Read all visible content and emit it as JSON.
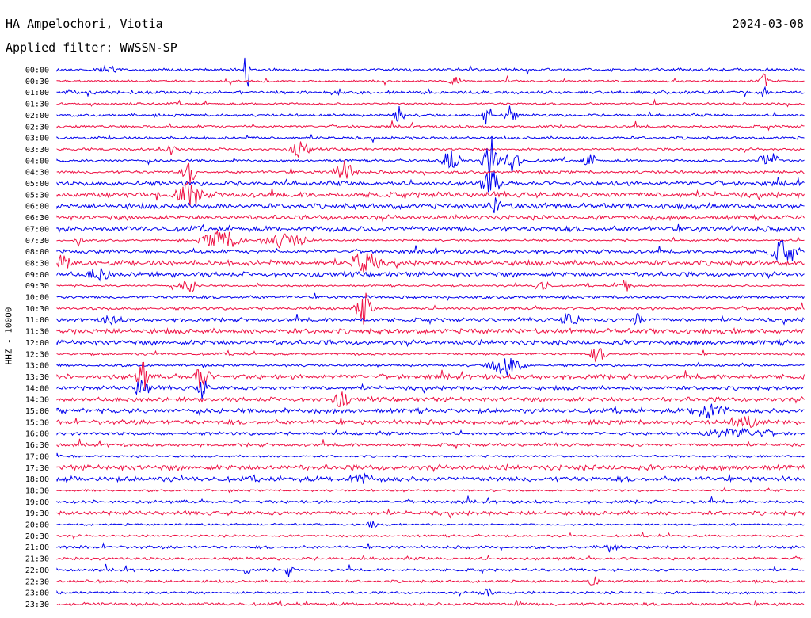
{
  "header": {
    "station": "HA Ampelochori, Viotia",
    "filter": "Applied filter: WWSSN-SP",
    "date": "2024-03-08",
    "sensor": "HHZ - 10000"
  },
  "chart_data": {
    "type": "line",
    "title": "HA Ampelochori, Viotia",
    "subtitle": "Applied filter: WWSSN-SP",
    "ylabel": "HHZ - 10000",
    "grid": false,
    "series_colors": [
      "#0000ee",
      "#ee1144"
    ],
    "rows": [
      {
        "label": "00:00",
        "color": "#0000ee"
      },
      {
        "label": "00:30",
        "color": "#ee1144"
      },
      {
        "label": "01:00",
        "color": "#0000ee"
      },
      {
        "label": "01:30",
        "color": "#ee1144"
      },
      {
        "label": "02:00",
        "color": "#0000ee"
      },
      {
        "label": "02:30",
        "color": "#ee1144"
      },
      {
        "label": "03:00",
        "color": "#0000ee"
      },
      {
        "label": "03:30",
        "color": "#ee1144"
      },
      {
        "label": "04:00",
        "color": "#0000ee"
      },
      {
        "label": "04:30",
        "color": "#ee1144"
      },
      {
        "label": "05:00",
        "color": "#0000ee"
      },
      {
        "label": "05:30",
        "color": "#ee1144"
      },
      {
        "label": "06:00",
        "color": "#0000ee"
      },
      {
        "label": "06:30",
        "color": "#ee1144"
      },
      {
        "label": "07:00",
        "color": "#0000ee"
      },
      {
        "label": "07:30",
        "color": "#ee1144"
      },
      {
        "label": "08:00",
        "color": "#0000ee"
      },
      {
        "label": "08:30",
        "color": "#ee1144"
      },
      {
        "label": "09:00",
        "color": "#0000ee"
      },
      {
        "label": "09:30",
        "color": "#ee1144"
      },
      {
        "label": "10:00",
        "color": "#0000ee"
      },
      {
        "label": "10:30",
        "color": "#ee1144"
      },
      {
        "label": "11:00",
        "color": "#0000ee"
      },
      {
        "label": "11:30",
        "color": "#ee1144"
      },
      {
        "label": "12:00",
        "color": "#0000ee"
      },
      {
        "label": "12:30",
        "color": "#ee1144"
      },
      {
        "label": "13:00",
        "color": "#0000ee"
      },
      {
        "label": "13:30",
        "color": "#ee1144"
      },
      {
        "label": "14:00",
        "color": "#0000ee"
      },
      {
        "label": "14:30",
        "color": "#ee1144"
      },
      {
        "label": "15:00",
        "color": "#0000ee"
      },
      {
        "label": "15:30",
        "color": "#ee1144"
      },
      {
        "label": "16:00",
        "color": "#0000ee"
      },
      {
        "label": "16:30",
        "color": "#ee1144"
      },
      {
        "label": "17:00",
        "color": "#0000ee"
      },
      {
        "label": "17:30",
        "color": "#ee1144"
      },
      {
        "label": "18:00",
        "color": "#0000ee"
      },
      {
        "label": "18:30",
        "color": "#ee1144"
      },
      {
        "label": "19:00",
        "color": "#0000ee"
      },
      {
        "label": "19:30",
        "color": "#ee1144"
      },
      {
        "label": "20:00",
        "color": "#0000ee"
      },
      {
        "label": "20:30",
        "color": "#ee1144"
      },
      {
        "label": "21:00",
        "color": "#0000ee"
      },
      {
        "label": "21:30",
        "color": "#ee1144"
      },
      {
        "label": "22:00",
        "color": "#0000ee"
      },
      {
        "label": "22:30",
        "color": "#ee1144"
      },
      {
        "label": "23:00",
        "color": "#0000ee"
      },
      {
        "label": "23:30",
        "color": "#ee1144"
      }
    ]
  }
}
